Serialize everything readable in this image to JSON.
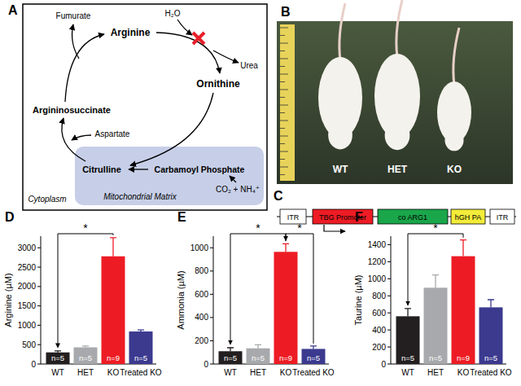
{
  "diagram": {
    "letter": "A",
    "labels": {
      "fumurate": "Fumurate",
      "arginine": "Arginine",
      "h2o": "H₂O",
      "urea": "Urea",
      "ornithine": "Ornithine",
      "argininosuccinate": "Argininosuccinate",
      "aspartate": "Aspartate",
      "citrulline": "Citrulline",
      "carbamoyl": "Carbamoyl Phosphate",
      "co2": "CO₂ + NH₄⁺",
      "cytoplasm": "Cytoplasm",
      "matrix": "Mitochondrial Matrix"
    }
  },
  "photo": {
    "letter": "B",
    "labels": [
      "WT",
      "HET",
      "KO"
    ]
  },
  "construct": {
    "letter": "C",
    "elements": [
      "ITR",
      "TBG Promoter",
      "co ARG1",
      "hGH PA",
      "ITR"
    ]
  },
  "chart_data": [
    {
      "type": "bar",
      "panel_label": "D",
      "y_label": "Arginine (µM)",
      "categories": [
        "WT",
        "HET",
        "KO",
        "Treated KO"
      ],
      "values": [
        300,
        430,
        2780,
        840
      ],
      "errors": [
        40,
        35,
        480,
        40
      ],
      "n_labels": [
        "n=5",
        "n=5",
        "n=9",
        "n=5"
      ],
      "colors": [
        "#231f20",
        "#a7a9ac",
        "#ed1c24",
        "#3b3a8f"
      ],
      "ylim": [
        0,
        3300
      ],
      "yticks": [
        0,
        500,
        1000,
        1500,
        2000,
        2500,
        3000
      ],
      "significance": [
        {
          "pair": [
            0,
            2
          ],
          "label": "*"
        }
      ]
    },
    {
      "type": "bar",
      "panel_label": "E",
      "y_label": "Ammonia (µM)",
      "categories": [
        "WT",
        "HET",
        "KO",
        "Treated KO"
      ],
      "values": [
        110,
        135,
        965,
        130
      ],
      "errors": [
        30,
        30,
        70,
        25
      ],
      "n_labels": [
        "n=5",
        "n=5",
        "n=9",
        "n=5"
      ],
      "colors": [
        "#231f20",
        "#a7a9ac",
        "#ed1c24",
        "#3b3a8f"
      ],
      "ylim": [
        0,
        1100
      ],
      "yticks": [
        0,
        200,
        400,
        600,
        800,
        1000
      ],
      "significance": [
        {
          "pair": [
            0,
            2
          ],
          "label": "*"
        },
        {
          "pair": [
            2,
            3
          ],
          "label": "*"
        }
      ]
    },
    {
      "type": "bar",
      "panel_label": "F",
      "y_label": "Taurine (µM)",
      "categories": [
        "WT",
        "HET",
        "KO",
        "Treated KO"
      ],
      "values": [
        560,
        895,
        1265,
        665
      ],
      "errors": [
        90,
        150,
        190,
        90
      ],
      "n_labels": [
        "n=5",
        "n=5",
        "n=9",
        "n=5"
      ],
      "colors": [
        "#231f20",
        "#a7a9ac",
        "#ed1c24",
        "#3b3a8f"
      ],
      "ylim": [
        0,
        1500
      ],
      "yticks": [
        0,
        200,
        400,
        600,
        800,
        1000,
        1200,
        1400
      ],
      "significance": [
        {
          "pair": [
            0,
            2
          ],
          "label": "*"
        }
      ]
    }
  ]
}
